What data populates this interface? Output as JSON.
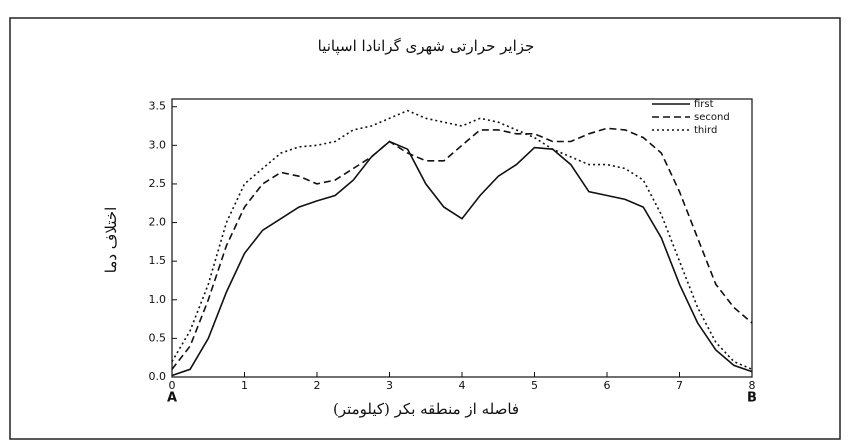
{
  "chart_data": {
    "type": "line",
    "title": "جزایر حرارتی شهری گرانادا اسپانیا",
    "x_label": "فاصله از منطقه بکر (کیلومتر)",
    "y_label": "اختلاف دما",
    "annotations": [
      "A",
      "B"
    ],
    "x": [
      0,
      0.25,
      0.5,
      0.75,
      1,
      1.25,
      1.5,
      1.75,
      2,
      2.25,
      2.5,
      2.75,
      3,
      3.25,
      3.5,
      3.75,
      4,
      4.25,
      4.5,
      4.75,
      5,
      5.25,
      5.5,
      5.75,
      6,
      6.25,
      6.5,
      6.75,
      7,
      7.25,
      7.5,
      7.75,
      8
    ],
    "xlim": [
      0,
      8
    ],
    "xticks": [
      0,
      1,
      2,
      3,
      4,
      5,
      6,
      7,
      8
    ],
    "ylim": [
      0,
      3.6
    ],
    "yticks": [
      {
        "value": 0,
        "label": "0.0"
      },
      0.5,
      {
        "value": 1,
        "label": "1.0"
      },
      1.5,
      {
        "value": 2,
        "label": "2.0"
      },
      2.5,
      {
        "value": 3,
        "label": "3.0"
      },
      3.5
    ],
    "legend": "top-right",
    "series": [
      {
        "name": "first",
        "color": "#111111",
        "dash": "solid",
        "values": [
          0.02,
          0.1,
          0.5,
          1.1,
          1.6,
          1.9,
          2.05,
          2.2,
          2.28,
          2.35,
          2.55,
          2.85,
          3.05,
          2.95,
          2.5,
          2.2,
          2.05,
          2.35,
          2.6,
          2.75,
          2.97,
          2.95,
          2.75,
          2.4,
          2.35,
          2.3,
          2.2,
          1.8,
          1.2,
          0.7,
          0.35,
          0.15,
          0.07
        ]
      },
      {
        "name": "second",
        "color": "#111111",
        "dash": "dashed",
        "values": [
          0.1,
          0.4,
          1.0,
          1.7,
          2.2,
          2.5,
          2.65,
          2.6,
          2.5,
          2.55,
          2.7,
          2.85,
          3.05,
          2.9,
          2.8,
          2.8,
          3.0,
          3.2,
          3.2,
          3.15,
          3.15,
          3.05,
          3.05,
          3.15,
          3.22,
          3.2,
          3.1,
          2.9,
          2.4,
          1.8,
          1.2,
          0.9,
          0.7
        ]
      },
      {
        "name": "third",
        "color": "#111111",
        "dash": "dotted",
        "values": [
          0.2,
          0.6,
          1.2,
          2.0,
          2.5,
          2.7,
          2.9,
          2.98,
          3.0,
          3.05,
          3.2,
          3.25,
          3.35,
          3.45,
          3.35,
          3.3,
          3.25,
          3.35,
          3.3,
          3.2,
          3.1,
          2.95,
          2.85,
          2.75,
          2.75,
          2.7,
          2.55,
          2.1,
          1.5,
          0.9,
          0.45,
          0.2,
          0.1
        ]
      }
    ]
  }
}
